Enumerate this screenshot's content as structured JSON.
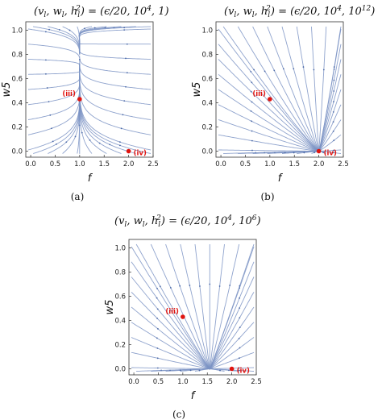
{
  "chart_data": [
    {
      "type": "streamplot",
      "title": "(v_l, w_l, h_l^2) = (ϵ/20, 10^4, 1)",
      "caption": "(a)",
      "xlabel": "f",
      "ylabel": "w5",
      "xlim": [
        -0.1,
        2.5
      ],
      "ylim": [
        -0.05,
        1.07
      ],
      "x_ticks": [
        "0.0",
        "0.5",
        "1.0",
        "1.5",
        "2.0",
        "2.5"
      ],
      "y_ticks": [
        "0.0",
        "0.2",
        "0.4",
        "0.6",
        "0.8",
        "1.0"
      ],
      "points": [
        {
          "label": "(iii)",
          "x": 1.0,
          "y": 0.43
        },
        {
          "label": "(iv)",
          "x": 2.0,
          "y": 0.0
        }
      ],
      "flow_pattern": "converge-to-vertical-line-f-1",
      "accent_color": "#e0140f",
      "stream_color": "#7b93c4"
    },
    {
      "type": "streamplot",
      "title": "(v_l, w_l, h_l^2) = (ϵ/20, 10^4, 10^12)",
      "caption": "(b)",
      "xlabel": "f",
      "ylabel": "w5",
      "xlim": [
        -0.1,
        2.5
      ],
      "ylim": [
        -0.05,
        1.07
      ],
      "x_ticks": [
        "0.0",
        "0.5",
        "1.0",
        "1.5",
        "2.0",
        "2.5"
      ],
      "y_ticks": [
        "0.0",
        "0.2",
        "0.4",
        "0.6",
        "0.8",
        "1.0"
      ],
      "points": [
        {
          "label": "(iii)",
          "x": 1.0,
          "y": 0.43
        },
        {
          "label": "(iv)",
          "x": 2.0,
          "y": 0.0
        }
      ],
      "flow_pattern": "converge-to-node-iv",
      "accent_color": "#e0140f",
      "stream_color": "#7b93c4"
    },
    {
      "type": "streamplot",
      "title": "(v_l, w_l, h_l^2) = (ϵ/20, 10^4, 10^6)",
      "caption": "(c)",
      "xlabel": "f",
      "ylabel": "w5",
      "xlim": [
        -0.1,
        2.5
      ],
      "ylim": [
        -0.05,
        1.07
      ],
      "x_ticks": [
        "0.0",
        "0.5",
        "1.0",
        "1.5",
        "2.0",
        "2.5"
      ],
      "y_ticks": [
        "0.0",
        "0.2",
        "0.4",
        "0.6",
        "0.8",
        "1.0"
      ],
      "points": [
        {
          "label": "(iii)",
          "x": 1.0,
          "y": 0.43
        },
        {
          "label": "(iv)",
          "x": 2.0,
          "y": 0.0
        }
      ],
      "flow_pattern": "converge-to-node-near-f-1.5",
      "accent_color": "#e0140f",
      "stream_color": "#7b93c4"
    }
  ]
}
